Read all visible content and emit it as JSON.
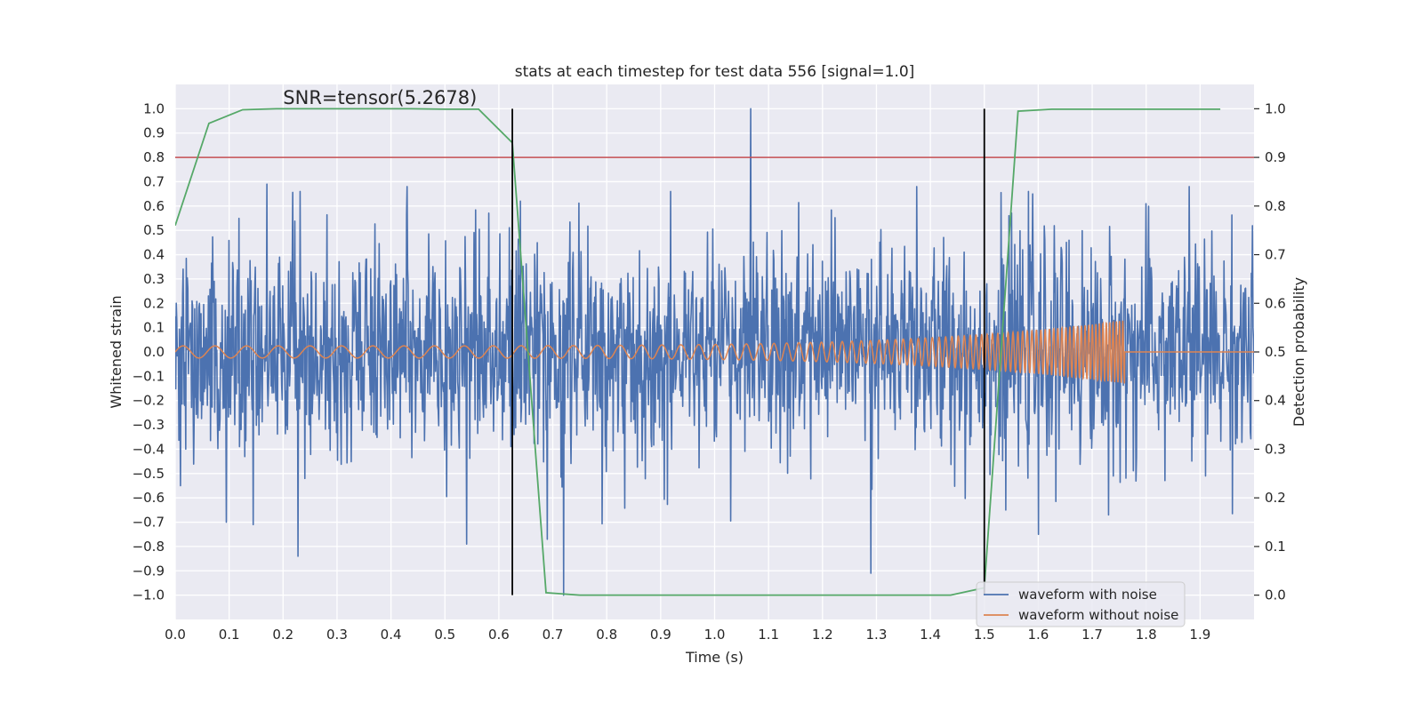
{
  "chart_data": {
    "type": "line",
    "title": "stats at each timestep for test data 556 [signal=1.0]",
    "xlabel": "Time (s)",
    "ylabel": "Whitened strain",
    "y2label": "Detection probability",
    "xlim": [
      0.0,
      2.0
    ],
    "ylim": [
      -1.1,
      1.1
    ],
    "y2lim": [
      -0.05,
      1.05
    ],
    "xticks": [
      0.0,
      0.1,
      0.2,
      0.3,
      0.4,
      0.5,
      0.6,
      0.7,
      0.8,
      0.9,
      1.0,
      1.1,
      1.2,
      1.3,
      1.4,
      1.5,
      1.6,
      1.7,
      1.8,
      1.9
    ],
    "xtick_labels": [
      "0.0",
      "0.1",
      "0.2",
      "0.3",
      "0.4",
      "0.5",
      "0.6",
      "0.7",
      "0.8",
      "0.9",
      "1.0",
      "1.1",
      "1.2",
      "1.3",
      "1.4",
      "1.5",
      "1.6",
      "1.7",
      "1.8",
      "1.9"
    ],
    "yticks": [
      1.0,
      0.9,
      0.8,
      0.7,
      0.6,
      0.5,
      0.4,
      0.3,
      0.2,
      0.1,
      0.0,
      -0.1,
      -0.2,
      -0.3,
      -0.4,
      -0.5,
      -0.6,
      -0.7,
      -0.8,
      -0.9,
      -1.0
    ],
    "ytick_labels": [
      "1.0",
      "0.9",
      "0.8",
      "0.7",
      "0.6",
      "0.5",
      "0.4",
      "0.3",
      "0.2",
      "0.1",
      "0.0",
      "−0.1",
      "−0.2",
      "−0.3",
      "−0.4",
      "−0.5",
      "−0.6",
      "−0.7",
      "−0.8",
      "−0.9",
      "−1.0"
    ],
    "y2ticks": [
      1.0,
      0.9,
      0.8,
      0.7,
      0.6,
      0.5,
      0.4,
      0.3,
      0.2,
      0.1,
      0.0
    ],
    "y2tick_labels": [
      "1.0",
      "0.9",
      "0.8",
      "0.7",
      "0.6",
      "0.5",
      "0.4",
      "0.3",
      "0.2",
      "0.1",
      "0.0"
    ],
    "annotation": "SNR=tensor(5.2678)",
    "annotation_at": {
      "x": 0.2,
      "y": 1.02
    },
    "threshold": {
      "axis": "y2",
      "value": 0.9,
      "color": "#c44e52"
    },
    "vlines": [
      {
        "x": 0.625,
        "ymin": -1.0,
        "ymax": 1.0,
        "color": "#000000"
      },
      {
        "x": 1.5,
        "ymin": -1.0,
        "ymax": 1.0,
        "color": "#000000"
      }
    ],
    "series": [
      {
        "name": "waveform with noise",
        "color": "#4c72b0",
        "axis": "y",
        "kind": "noise",
        "samples": 2048,
        "amplitude": 0.22,
        "spikes": [
          {
            "x": 0.17,
            "y": 0.69
          },
          {
            "x": 0.228,
            "y": -0.84
          },
          {
            "x": 0.43,
            "y": 0.68
          },
          {
            "x": 0.54,
            "y": -0.79
          },
          {
            "x": 0.72,
            "y": -1.0
          },
          {
            "x": 0.69,
            "y": -0.77
          },
          {
            "x": 1.067,
            "y": 1.0
          },
          {
            "x": 1.29,
            "y": -0.91
          },
          {
            "x": 1.88,
            "y": 0.68
          },
          {
            "x": 1.73,
            "y": -0.67
          },
          {
            "x": 0.095,
            "y": -0.7
          },
          {
            "x": 0.145,
            "y": -0.71
          },
          {
            "x": 1.375,
            "y": 0.68
          },
          {
            "x": 1.54,
            "y": -0.65
          },
          {
            "x": 0.01,
            "y": -0.55
          },
          {
            "x": 0.64,
            "y": 0.62
          },
          {
            "x": 1.59,
            "y": 0.65
          },
          {
            "x": 1.6,
            "y": -0.75
          }
        ]
      },
      {
        "name": "waveform without noise",
        "color": "#dd8452",
        "axis": "y",
        "kind": "chirp",
        "t_start": 0.0,
        "t_merge": 1.76,
        "amp_start": 0.025,
        "amp_end": 0.13,
        "freq_start": 17,
        "freq_end": 170
      },
      {
        "name": "detection probability",
        "color": "#55a868",
        "axis": "y2",
        "kind": "line",
        "x": [
          0.0,
          0.0625,
          0.125,
          0.1875,
          0.25,
          0.3125,
          0.375,
          0.4375,
          0.5,
          0.5625,
          0.625,
          0.6875,
          0.75,
          0.8125,
          0.875,
          0.9375,
          1.0,
          1.0625,
          1.125,
          1.1875,
          1.25,
          1.3125,
          1.375,
          1.4375,
          1.5,
          1.5625,
          1.625,
          1.6875,
          1.75,
          1.8125,
          1.875,
          1.9375
        ],
        "y": [
          0.76,
          0.97,
          0.998,
          1.0,
          1.0,
          1.0,
          1.0,
          1.0,
          0.999,
          0.999,
          0.93,
          0.005,
          0.0,
          0.0,
          0.0,
          0.0,
          0.0,
          0.0,
          0.0,
          0.0,
          0.0,
          0.0,
          0.0,
          0.0,
          0.015,
          0.995,
          0.999,
          0.999,
          0.999,
          0.999,
          0.999,
          0.999
        ]
      }
    ],
    "legend": {
      "placement": "lower-right",
      "entries": [
        {
          "label": "waveform with noise",
          "color": "#4c72b0"
        },
        {
          "label": "waveform without noise",
          "color": "#dd8452"
        }
      ]
    },
    "style": {
      "background": "#eaeaf2",
      "grid": true,
      "grid_color": "#ffffff"
    }
  }
}
